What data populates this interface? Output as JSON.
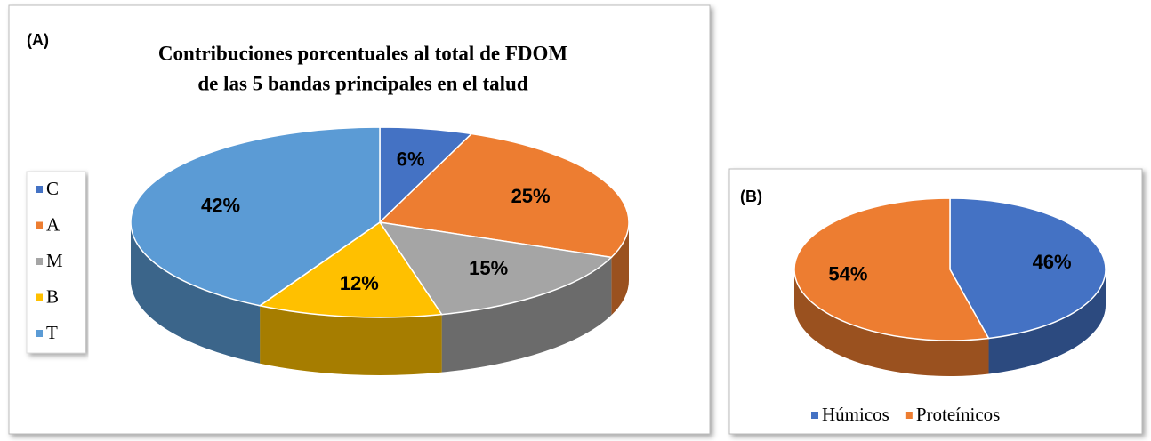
{
  "chart_data": [
    {
      "type": "pie3d",
      "label": "(A)",
      "title": [
        "Contribuciones porcentuales al total de FDOM",
        "de las 5 bandas principales en el talud"
      ],
      "categories": [
        "C",
        "A",
        "M",
        "B",
        "T"
      ],
      "values": [
        6,
        25,
        15,
        12,
        42
      ],
      "value_labels": [
        "6%",
        "25%",
        "15%",
        "12%",
        "42%"
      ],
      "colors": [
        "#4472c4",
        "#ed7d31",
        "#a5a5a5",
        "#ffc000",
        "#5b9bd5"
      ],
      "legend": "left"
    },
    {
      "type": "pie3d",
      "label": "(B)",
      "categories": [
        "Húmicos",
        "Proteínicos"
      ],
      "values": [
        46,
        54
      ],
      "value_labels": [
        "46%",
        "54%"
      ],
      "colors": [
        "#4472c4",
        "#ed7d31"
      ],
      "legend": "bottom"
    }
  ]
}
